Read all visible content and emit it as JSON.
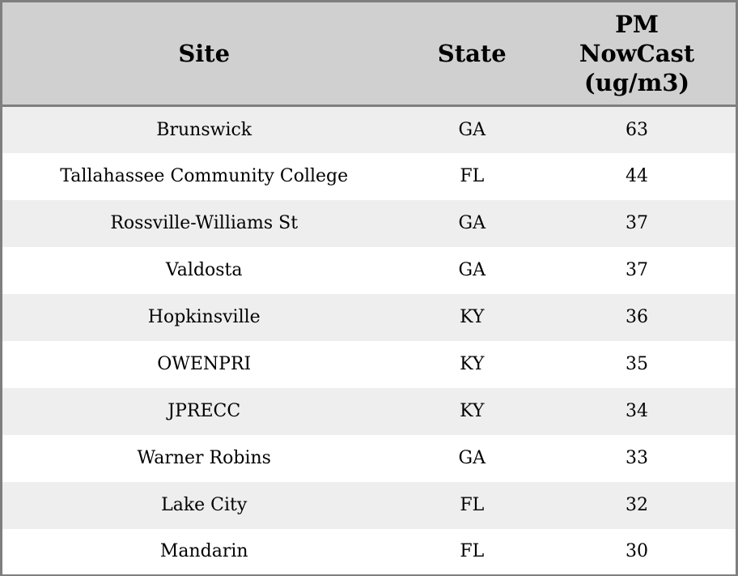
{
  "table": {
    "columns": [
      {
        "key": "site",
        "label": "Site"
      },
      {
        "key": "state",
        "label": "State"
      },
      {
        "key": "pm_nowcast",
        "label": "PM\nNowCast\n(ug/m3)"
      }
    ],
    "rows": [
      {
        "site": "Brunswick",
        "state": "GA",
        "pm_nowcast": "63"
      },
      {
        "site": "Tallahassee Community College",
        "state": "FL",
        "pm_nowcast": "44"
      },
      {
        "site": "Rossville-Williams St",
        "state": "GA",
        "pm_nowcast": "37"
      },
      {
        "site": "Valdosta",
        "state": "GA",
        "pm_nowcast": "37"
      },
      {
        "site": "Hopkinsville",
        "state": "KY",
        "pm_nowcast": "36"
      },
      {
        "site": "OWENPRI",
        "state": "KY",
        "pm_nowcast": "35"
      },
      {
        "site": "JPRECC",
        "state": "KY",
        "pm_nowcast": "34"
      },
      {
        "site": "Warner Robins",
        "state": "GA",
        "pm_nowcast": "33"
      },
      {
        "site": "Lake City",
        "state": "FL",
        "pm_nowcast": "32"
      },
      {
        "site": "Mandarin",
        "state": "FL",
        "pm_nowcast": "30"
      }
    ],
    "colors": {
      "header_bg": "#d0d0d0",
      "row_alt_bg": "#eeeeee",
      "row_bg": "#ffffff",
      "border": "#7f7f7f",
      "text": "#000000"
    }
  }
}
